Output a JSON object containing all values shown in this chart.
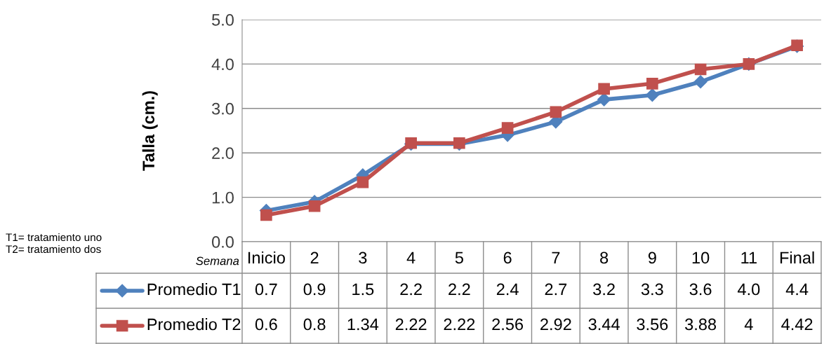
{
  "chart_data": {
    "type": "line",
    "ylabel": "Talla (cm.)",
    "xlabel": "Semana",
    "categories": [
      "Inicio",
      "2",
      "3",
      "4",
      "5",
      "6",
      "7",
      "8",
      "9",
      "10",
      "11",
      "Final"
    ],
    "series": [
      {
        "name": "Promedio T1",
        "color": "#4f81bd",
        "marker": "diamond",
        "values": [
          0.7,
          0.9,
          1.5,
          2.2,
          2.2,
          2.4,
          2.7,
          3.2,
          3.3,
          3.6,
          4.0,
          4.4
        ],
        "value_labels": [
          "0.7",
          "0.9",
          "1.5",
          "2.2",
          "2.2",
          "2.4",
          "2.7",
          "3.2",
          "3.3",
          "3.6",
          "4.0",
          "4.4"
        ]
      },
      {
        "name": "Promedio T2",
        "color": "#c0504d",
        "marker": "square",
        "values": [
          0.6,
          0.8,
          1.34,
          2.22,
          2.22,
          2.56,
          2.92,
          3.44,
          3.56,
          3.88,
          4,
          4.42
        ],
        "value_labels": [
          "0.6",
          "0.8",
          "1.34",
          "2.22",
          "2.22",
          "2.56",
          "2.92",
          "3.44",
          "3.56",
          "3.88",
          "4",
          "4.42"
        ]
      }
    ],
    "ylim": [
      0,
      5
    ],
    "yticks": [
      {
        "value": 0,
        "label": "0.0"
      },
      {
        "value": 1,
        "label": "1.0"
      },
      {
        "value": 2,
        "label": "2.0"
      },
      {
        "value": 3,
        "label": "3.0"
      },
      {
        "value": 4,
        "label": "4.0"
      },
      {
        "value": 5,
        "label": "5.0"
      }
    ],
    "grid": "y",
    "legend": "bottom left",
    "line_style": "solid",
    "annotations": [
      "T1= tratamiento uno",
      "T2= tratamiento dos"
    ]
  }
}
